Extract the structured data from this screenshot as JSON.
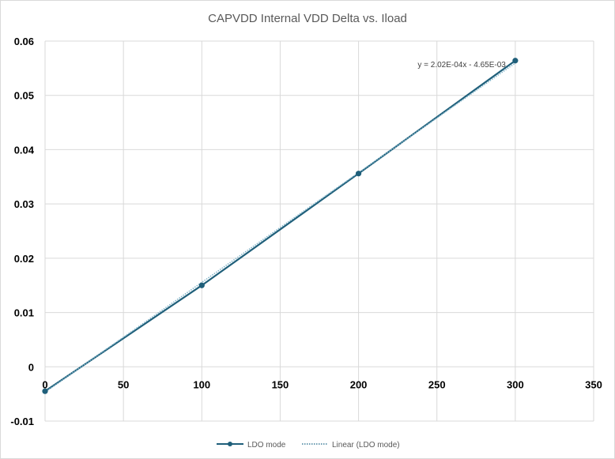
{
  "chart_data": {
    "type": "scatter",
    "title": "CAPVDD Internal VDD Delta vs. Iload",
    "xlabel": "",
    "ylabel": "",
    "xlim": [
      0,
      350
    ],
    "ylim": [
      -0.01,
      0.06
    ],
    "x_ticks": [
      "0",
      "50",
      "100",
      "150",
      "200",
      "250",
      "300",
      "350"
    ],
    "y_ticks": [
      "-0.01",
      "0",
      "0.01",
      "0.02",
      "0.03",
      "0.04",
      "0.05",
      "0.06"
    ],
    "grid": true,
    "legend_position": "bottom",
    "series": [
      {
        "name": "LDO mode",
        "color": "#1f5f7a",
        "style": "line-with-markers",
        "points": [
          {
            "x": 0,
            "y": -0.0045
          },
          {
            "x": 100,
            "y": 0.015
          },
          {
            "x": 200,
            "y": 0.0356
          },
          {
            "x": 300,
            "y": 0.0564
          }
        ]
      }
    ],
    "trendline": {
      "name": "Linear (LDO mode)",
      "color": "#1f5f7a",
      "style": "dotted",
      "slope": 0.000202,
      "intercept": -0.00465,
      "x_range": [
        0,
        300
      ],
      "equation": "y = 2.02E-04x - 4.65E-03"
    }
  }
}
